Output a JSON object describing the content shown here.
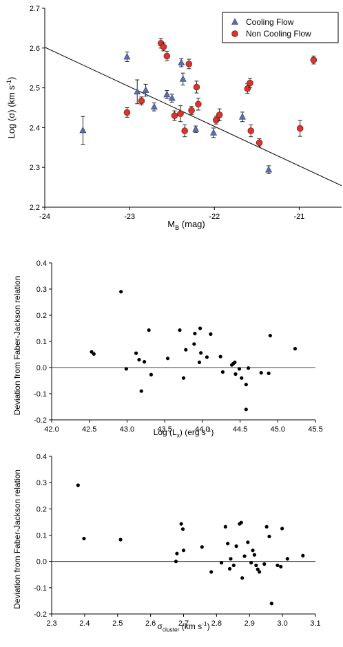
{
  "chart_data": [
    {
      "type": "scatter",
      "xlabel": "M",
      "xlabel_sub": "B",
      "xlabel_suffix": " (mag)",
      "ylabel": "Log (σ)  (km s",
      "ylabel_sup": "-1",
      "ylabel_suffix": ")",
      "xlim": [
        -24,
        -20.5
      ],
      "ylim": [
        2.2,
        2.7
      ],
      "x_ticks": [
        -24,
        -23,
        -22,
        -21
      ],
      "x_tick_labels": [
        "-24",
        "-23",
        "-22",
        "-21"
      ],
      "y_ticks": [
        2.2,
        2.3,
        2.4,
        2.5,
        2.6,
        2.7
      ],
      "y_tick_labels": [
        "2.2",
        "2.3",
        "2.4",
        "2.5",
        "2.6",
        "2.7"
      ],
      "legend": {
        "position": "top-right"
      },
      "fit_line": {
        "x": [
          -24,
          -20.5
        ],
        "y": [
          2.602,
          2.254
        ]
      },
      "series": [
        {
          "name": "Cooling Flow",
          "marker": "triangle",
          "color": "#5a6fb0",
          "points": [
            {
              "x": -23.55,
              "y": 2.393,
              "err": 0.035
            },
            {
              "x": -23.03,
              "y": 2.578,
              "err": 0.012
            },
            {
              "x": -22.91,
              "y": 2.49,
              "err": 0.03
            },
            {
              "x": -22.81,
              "y": 2.494,
              "err": 0.015
            },
            {
              "x": -22.71,
              "y": 2.452,
              "err": 0.01
            },
            {
              "x": -22.56,
              "y": 2.483,
              "err": 0.01
            },
            {
              "x": -22.5,
              "y": 2.474,
              "err": 0.01
            },
            {
              "x": -22.39,
              "y": 2.563,
              "err": 0.01
            },
            {
              "x": -22.37,
              "y": 2.522,
              "err": 0.015
            },
            {
              "x": -22.22,
              "y": 2.396,
              "err": 0.008
            },
            {
              "x": -22.01,
              "y": 2.387,
              "err": 0.012
            },
            {
              "x": -21.67,
              "y": 2.427,
              "err": 0.012
            },
            {
              "x": -21.36,
              "y": 2.294,
              "err": 0.01
            }
          ]
        },
        {
          "name": "Non Cooling Flow",
          "marker": "circle",
          "color": "#d9352b",
          "points": [
            {
              "x": -23.03,
              "y": 2.438,
              "err": 0.012
            },
            {
              "x": -22.86,
              "y": 2.467,
              "err": 0.01
            },
            {
              "x": -22.63,
              "y": 2.612,
              "err": 0.012
            },
            {
              "x": -22.6,
              "y": 2.603,
              "err": 0.01
            },
            {
              "x": -22.56,
              "y": 2.58,
              "err": 0.012
            },
            {
              "x": -22.47,
              "y": 2.43,
              "err": 0.012
            },
            {
              "x": -22.4,
              "y": 2.435,
              "err": 0.02
            },
            {
              "x": -22.35,
              "y": 2.392,
              "err": 0.015
            },
            {
              "x": -22.3,
              "y": 2.56,
              "err": 0.012
            },
            {
              "x": -22.27,
              "y": 2.443,
              "err": 0.01
            },
            {
              "x": -22.21,
              "y": 2.502,
              "err": 0.015
            },
            {
              "x": -22.19,
              "y": 2.459,
              "err": 0.015
            },
            {
              "x": -21.98,
              "y": 2.419,
              "err": 0.01
            },
            {
              "x": -21.94,
              "y": 2.432,
              "err": 0.015
            },
            {
              "x": -21.61,
              "y": 2.498,
              "err": 0.012
            },
            {
              "x": -21.58,
              "y": 2.512,
              "err": 0.012
            },
            {
              "x": -21.57,
              "y": 2.392,
              "err": 0.015
            },
            {
              "x": -21.47,
              "y": 2.362,
              "err": 0.01
            },
            {
              "x": -20.99,
              "y": 2.398,
              "err": 0.02
            },
            {
              "x": -20.83,
              "y": 2.57,
              "err": 0.01
            }
          ]
        }
      ]
    },
    {
      "type": "scatter",
      "xlabel": "Log (L",
      "xlabel_sub": "x",
      "xlabel_suffix": ")  (erg s",
      "xlabel_sup": "-1",
      "xlabel_suffix2": ")",
      "ylabel": "Deviation from Faber-Jackson relation",
      "xlim": [
        42.0,
        45.5
      ],
      "ylim": [
        -0.2,
        0.4
      ],
      "x_ticks": [
        42.0,
        42.5,
        43.0,
        43.5,
        44.0,
        44.5,
        45.0,
        45.5
      ],
      "x_tick_labels": [
        "42.0",
        "42.5",
        "43.0",
        "43.5",
        "44.0",
        "44.5",
        "45.0",
        "45.5"
      ],
      "y_ticks": [
        -0.2,
        -0.1,
        0.0,
        0.1,
        0.2,
        0.3,
        0.4
      ],
      "y_tick_labels": [
        "-0.2",
        "-0.1",
        "0.0",
        "0.1",
        "0.2",
        "0.3",
        "0.4"
      ],
      "zero_line": true,
      "points": [
        {
          "x": 42.53,
          "y": 0.06
        },
        {
          "x": 42.56,
          "y": 0.052
        },
        {
          "x": 42.92,
          "y": 0.29
        },
        {
          "x": 42.99,
          "y": -0.005
        },
        {
          "x": 43.12,
          "y": 0.055
        },
        {
          "x": 43.16,
          "y": 0.03
        },
        {
          "x": 43.19,
          "y": -0.09
        },
        {
          "x": 43.23,
          "y": 0.022
        },
        {
          "x": 43.29,
          "y": 0.143
        },
        {
          "x": 43.32,
          "y": -0.027
        },
        {
          "x": 43.54,
          "y": 0.035
        },
        {
          "x": 43.7,
          "y": 0.143
        },
        {
          "x": 43.75,
          "y": -0.04
        },
        {
          "x": 43.78,
          "y": 0.068
        },
        {
          "x": 43.89,
          "y": 0.09
        },
        {
          "x": 43.9,
          "y": 0.13
        },
        {
          "x": 43.96,
          "y": 0.02
        },
        {
          "x": 43.97,
          "y": 0.15
        },
        {
          "x": 43.98,
          "y": 0.056
        },
        {
          "x": 44.06,
          "y": 0.04
        },
        {
          "x": 44.11,
          "y": 0.128
        },
        {
          "x": 44.24,
          "y": 0.042
        },
        {
          "x": 44.27,
          "y": -0.017
        },
        {
          "x": 44.39,
          "y": 0.01
        },
        {
          "x": 44.41,
          "y": 0.015
        },
        {
          "x": 44.43,
          "y": 0.02
        },
        {
          "x": 44.44,
          "y": -0.025
        },
        {
          "x": 44.49,
          "y": -0.005
        },
        {
          "x": 44.52,
          "y": -0.04
        },
        {
          "x": 44.58,
          "y": -0.065
        },
        {
          "x": 44.58,
          "y": -0.16
        },
        {
          "x": 44.61,
          "y": -0.002
        },
        {
          "x": 44.78,
          "y": -0.02
        },
        {
          "x": 44.88,
          "y": -0.022
        },
        {
          "x": 44.9,
          "y": 0.122
        },
        {
          "x": 45.23,
          "y": 0.072
        }
      ]
    },
    {
      "type": "scatter",
      "xlabel": "σ",
      "xlabel_sub": "cluster",
      "xlabel_suffix": "  (km s",
      "xlabel_sup": "-1",
      "xlabel_suffix2": ")",
      "ylabel": "Deviation from Faber-Jackson relation",
      "xlim": [
        2.3,
        3.1
      ],
      "ylim": [
        -0.2,
        0.4
      ],
      "x_ticks": [
        2.3,
        2.4,
        2.5,
        2.6,
        2.7,
        2.8,
        2.9,
        3.0,
        3.1
      ],
      "x_tick_labels": [
        "2.3",
        "2.4",
        "2.5",
        "2.6",
        "2.7",
        "2.8",
        "2.9",
        "3.0",
        "3.1"
      ],
      "y_ticks": [
        -0.2,
        -0.1,
        0.0,
        0.1,
        0.2,
        0.3,
        0.4
      ],
      "y_tick_labels": [
        "-0.2",
        "-0.1",
        "0.0",
        "0.1",
        "0.2",
        "0.3",
        "0.4"
      ],
      "zero_line": true,
      "points": [
        {
          "x": 2.38,
          "y": 0.29
        },
        {
          "x": 2.398,
          "y": 0.087
        },
        {
          "x": 2.509,
          "y": 0.083
        },
        {
          "x": 2.677,
          "y": 0.0
        },
        {
          "x": 2.68,
          "y": 0.03
        },
        {
          "x": 2.693,
          "y": 0.143
        },
        {
          "x": 2.698,
          "y": 0.123
        },
        {
          "x": 2.7,
          "y": 0.042
        },
        {
          "x": 2.756,
          "y": 0.055
        },
        {
          "x": 2.784,
          "y": -0.04
        },
        {
          "x": 2.815,
          "y": -0.005
        },
        {
          "x": 2.827,
          "y": 0.132
        },
        {
          "x": 2.834,
          "y": 0.068
        },
        {
          "x": 2.84,
          "y": -0.028
        },
        {
          "x": 2.843,
          "y": 0.01
        },
        {
          "x": 2.852,
          "y": -0.015
        },
        {
          "x": 2.86,
          "y": 0.058
        },
        {
          "x": 2.87,
          "y": 0.143
        },
        {
          "x": 2.875,
          "y": 0.148
        },
        {
          "x": 2.878,
          "y": -0.063
        },
        {
          "x": 2.885,
          "y": 0.02
        },
        {
          "x": 2.895,
          "y": 0.073
        },
        {
          "x": 2.905,
          "y": -0.005
        },
        {
          "x": 2.91,
          "y": 0.042
        },
        {
          "x": 2.915,
          "y": 0.025
        },
        {
          "x": 2.92,
          "y": -0.015
        },
        {
          "x": 2.925,
          "y": -0.03
        },
        {
          "x": 2.93,
          "y": -0.04
        },
        {
          "x": 2.945,
          "y": -0.01
        },
        {
          "x": 2.952,
          "y": 0.132
        },
        {
          "x": 2.96,
          "y": 0.095
        },
        {
          "x": 2.967,
          "y": -0.16
        },
        {
          "x": 2.985,
          "y": -0.015
        },
        {
          "x": 2.995,
          "y": -0.02
        },
        {
          "x": 2.999,
          "y": 0.125
        },
        {
          "x": 3.015,
          "y": 0.01
        },
        {
          "x": 3.062,
          "y": 0.022
        }
      ]
    }
  ]
}
